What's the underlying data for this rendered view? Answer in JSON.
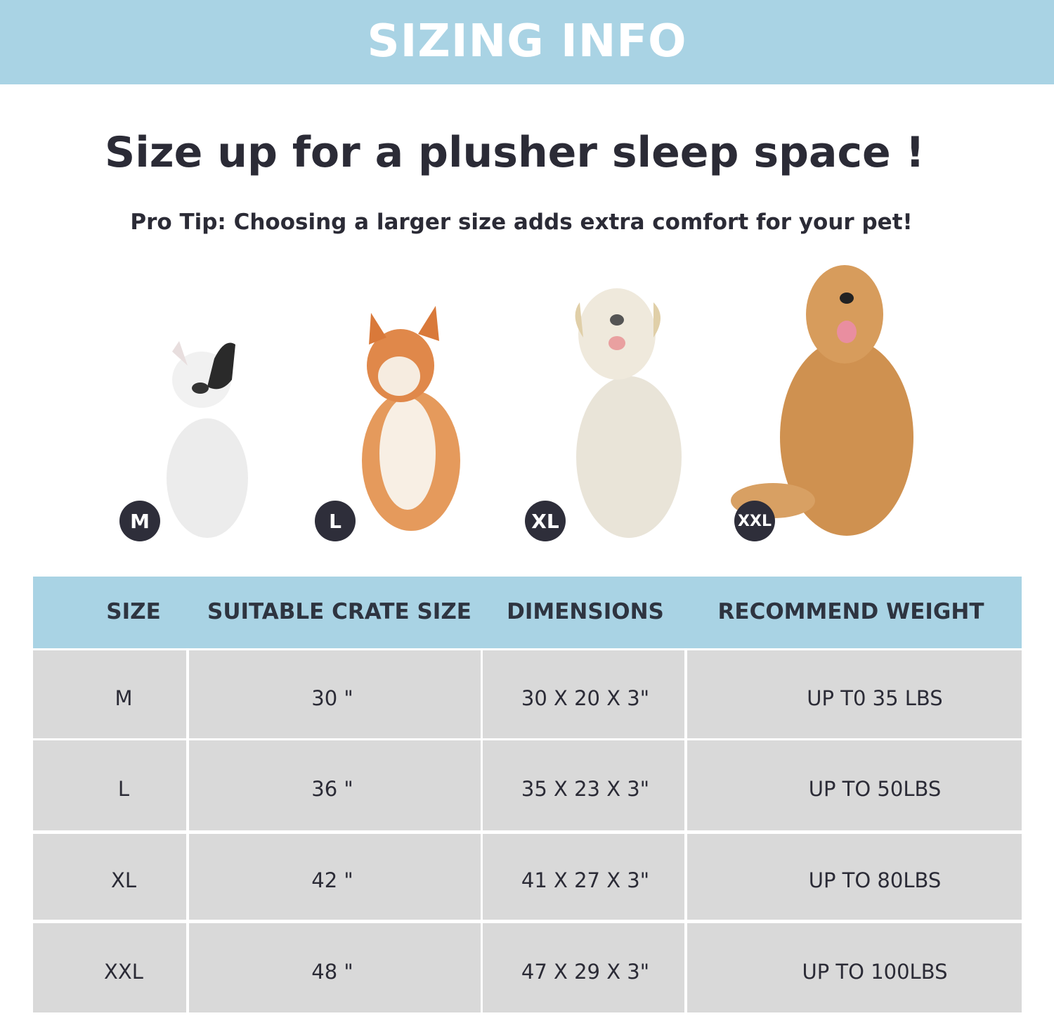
{
  "banner": {
    "title": "SIZING  INFO",
    "color": "#a9d3e4"
  },
  "headline": "Size up for a plusher sleep space !",
  "tip": "Pro Tip: Choosing a larger size adds extra comfort for your pet!",
  "dogs": [
    {
      "badge": "M",
      "breed_icon": "french-bulldog"
    },
    {
      "badge": "L",
      "breed_icon": "shiba-inu"
    },
    {
      "badge": "XL",
      "breed_icon": "labrador"
    },
    {
      "badge": "XXL",
      "breed_icon": "golden-retriever"
    }
  ],
  "table": {
    "headers": [
      "SIZE",
      "SUITABLE CRATE SIZE",
      "DIMENSIONS",
      "RECOMMEND WEIGHT"
    ],
    "rows": [
      [
        "M",
        "30 \"",
        "30 X 20 X 3\"",
        "UP T0 35 LBS"
      ],
      [
        "L",
        "36 \"",
        "35 X 23 X 3\"",
        "UP TO 50LBS"
      ],
      [
        "XL",
        "42 \"",
        "41 X 27 X 3\"",
        "UP TO 80LBS"
      ],
      [
        "XXL",
        "48 \"",
        "47 X 29 X 3\"",
        "UP TO 100LBS"
      ]
    ],
    "header_color": "#a9d3e4",
    "row_color": "#d9d9d9"
  }
}
